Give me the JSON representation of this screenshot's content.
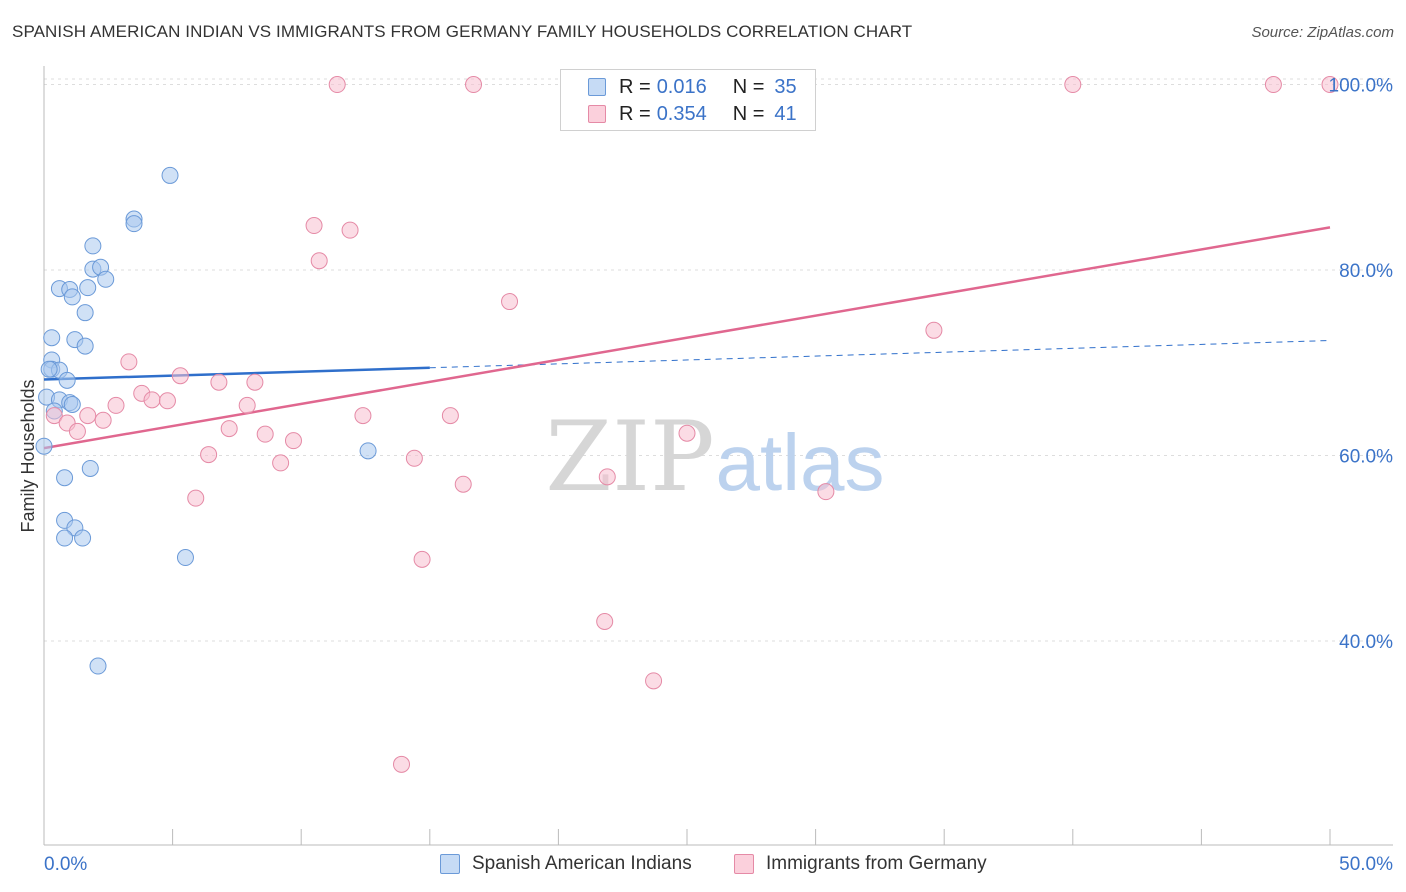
{
  "title": "SPANISH AMERICAN INDIAN VS IMMIGRANTS FROM GERMANY FAMILY HOUSEHOLDS CORRELATION CHART",
  "source": "Source: ZipAtlas.com",
  "watermark": {
    "zip": "ZIP",
    "atlas": "atlas"
  },
  "legend": {
    "rows": [
      {
        "r_label": "R =",
        "r_value": "0.016",
        "n_label": "N =",
        "n_value": "35",
        "color": "#a9c8ee",
        "border": "#6b9ad8"
      },
      {
        "r_label": "R =",
        "r_value": "0.354",
        "n_label": "N =",
        "n_value": "41",
        "color": "#f7c0d0",
        "border": "#e58aa6"
      }
    ]
  },
  "bottom_legend": [
    {
      "label": "Spanish American Indians",
      "color": "#c6dbf5",
      "border": "#6b9ad8"
    },
    {
      "label": "Immigrants from Germany",
      "color": "#fbd0dc",
      "border": "#e58aa6"
    }
  ],
  "chart_data": {
    "type": "scatter",
    "title": "SPANISH AMERICAN INDIAN VS IMMIGRANTS FROM GERMANY FAMILY HOUSEHOLDS CORRELATION CHART",
    "xlabel": "",
    "ylabel": "Family Households",
    "xlim": [
      0,
      50
    ],
    "ylim": [
      18,
      102
    ],
    "x_tick_labels": {
      "left": "0.0%",
      "right": "50.0%"
    },
    "y_ticks": [
      {
        "value": 40,
        "label": "40.0%"
      },
      {
        "value": 60,
        "label": "60.0%"
      },
      {
        "value": 80,
        "label": "80.0%"
      },
      {
        "value": 100,
        "label": "100.0%"
      }
    ],
    "grid": true,
    "series": [
      {
        "name": "Spanish American Indians",
        "color": "#6b9ad8",
        "fill": "rgba(169,200,238,0.55)",
        "points": [
          [
            4.9,
            90.2
          ],
          [
            3.5,
            85.5
          ],
          [
            3.5,
            85.0
          ],
          [
            1.9,
            82.6
          ],
          [
            1.9,
            80.1
          ],
          [
            2.2,
            80.3
          ],
          [
            2.4,
            79.0
          ],
          [
            0.6,
            78.0
          ],
          [
            1.0,
            77.9
          ],
          [
            1.7,
            78.1
          ],
          [
            1.1,
            77.1
          ],
          [
            1.6,
            75.4
          ],
          [
            0.3,
            72.7
          ],
          [
            1.2,
            72.5
          ],
          [
            1.6,
            71.8
          ],
          [
            0.3,
            70.3
          ],
          [
            0.3,
            69.3
          ],
          [
            0.6,
            69.2
          ],
          [
            0.9,
            68.1
          ],
          [
            0.1,
            66.3
          ],
          [
            0.6,
            66.0
          ],
          [
            1.0,
            65.7
          ],
          [
            1.1,
            65.5
          ],
          [
            0.4,
            64.8
          ],
          [
            0.0,
            61.0
          ],
          [
            12.6,
            60.5
          ],
          [
            1.8,
            58.6
          ],
          [
            0.8,
            57.6
          ],
          [
            0.8,
            53.0
          ],
          [
            1.2,
            52.2
          ],
          [
            0.8,
            51.1
          ],
          [
            1.5,
            51.1
          ],
          [
            5.5,
            49.0
          ],
          [
            2.1,
            37.3
          ],
          [
            0.2,
            69.3
          ]
        ],
        "trend": {
          "x0": 0,
          "y0": 68.2,
          "x1": 50,
          "y1": 72.4,
          "solid_until": 15
        }
      },
      {
        "name": "Immigrants from Germany",
        "color": "#e58aa6",
        "fill": "rgba(247,192,208,0.55)",
        "points": [
          [
            11.4,
            100.0
          ],
          [
            16.7,
            100.0
          ],
          [
            40.0,
            100.0
          ],
          [
            47.8,
            100.0
          ],
          [
            50.0,
            100.0
          ],
          [
            10.5,
            84.8
          ],
          [
            11.9,
            84.3
          ],
          [
            10.7,
            81.0
          ],
          [
            18.1,
            76.6
          ],
          [
            34.6,
            73.5
          ],
          [
            3.3,
            70.1
          ],
          [
            5.3,
            68.6
          ],
          [
            6.8,
            67.9
          ],
          [
            8.2,
            67.9
          ],
          [
            3.8,
            66.7
          ],
          [
            4.2,
            66.0
          ],
          [
            4.8,
            65.9
          ],
          [
            2.8,
            65.4
          ],
          [
            7.9,
            65.4
          ],
          [
            0.4,
            64.3
          ],
          [
            1.7,
            64.3
          ],
          [
            12.4,
            64.3
          ],
          [
            15.8,
            64.3
          ],
          [
            2.3,
            63.8
          ],
          [
            0.9,
            63.5
          ],
          [
            7.2,
            62.9
          ],
          [
            1.3,
            62.6
          ],
          [
            8.6,
            62.3
          ],
          [
            25.0,
            62.4
          ],
          [
            9.7,
            61.6
          ],
          [
            6.4,
            60.1
          ],
          [
            14.4,
            59.7
          ],
          [
            9.2,
            59.2
          ],
          [
            21.9,
            57.7
          ],
          [
            16.3,
            56.9
          ],
          [
            30.4,
            56.1
          ],
          [
            5.9,
            55.4
          ],
          [
            14.7,
            48.8
          ],
          [
            21.8,
            42.1
          ],
          [
            23.7,
            35.7
          ],
          [
            13.9,
            26.7
          ]
        ],
        "trend": {
          "x0": 0,
          "y0": 60.8,
          "x1": 50,
          "y1": 84.6,
          "solid_until": 50
        }
      }
    ]
  }
}
